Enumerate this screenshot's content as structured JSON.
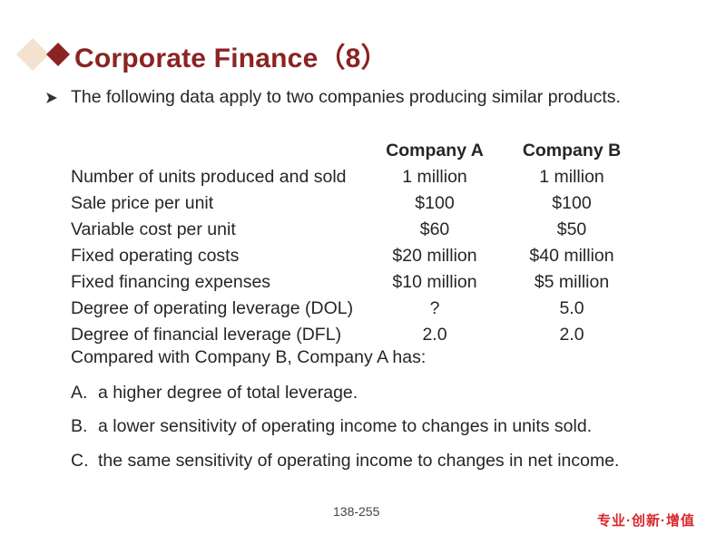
{
  "title": "Corporate Finance（8）",
  "intro": "The following data apply to two companies producing similar products.",
  "table": {
    "headers": [
      "Company A",
      "Company B"
    ],
    "rows": [
      {
        "label": "Number of units produced and sold",
        "a": "1 million",
        "b": "1 million"
      },
      {
        "label": "Sale price per unit",
        "a": "$100",
        "b": "$100"
      },
      {
        "label": "Variable cost per unit",
        "a": "$60",
        "b": "$50"
      },
      {
        "label": "Fixed operating costs",
        "a": "$20 million",
        "b": "$40 million"
      },
      {
        "label": "Fixed financing expenses",
        "a": "$10 million",
        "b": "$5 million"
      },
      {
        "label": "Degree of operating leverage (DOL)",
        "a": "?",
        "b": "5.0"
      },
      {
        "label": "Degree of financial leverage (DFL)",
        "a": "2.0",
        "b": "2.0"
      }
    ]
  },
  "question": "Compared with Company B, Company A has:",
  "options": [
    {
      "letter": "A.",
      "text": "a higher degree of total leverage."
    },
    {
      "letter": "B.",
      "text": "a lower sensitivity of operating income to changes in units sold."
    },
    {
      "letter": "C.",
      "text": "the same sensitivity of operating income to changes in net income."
    }
  ],
  "page_number": "138-255",
  "tagline": "专业·创新·增值",
  "colors": {
    "title": "#8b2323",
    "diamond_dark": "#8b2323",
    "diamond_light": "#f2e2cf",
    "tagline": "#d9262c"
  },
  "icons": {
    "title_decoration": "diamond-icon",
    "intro_bullet": "arrow-bullet-icon"
  }
}
